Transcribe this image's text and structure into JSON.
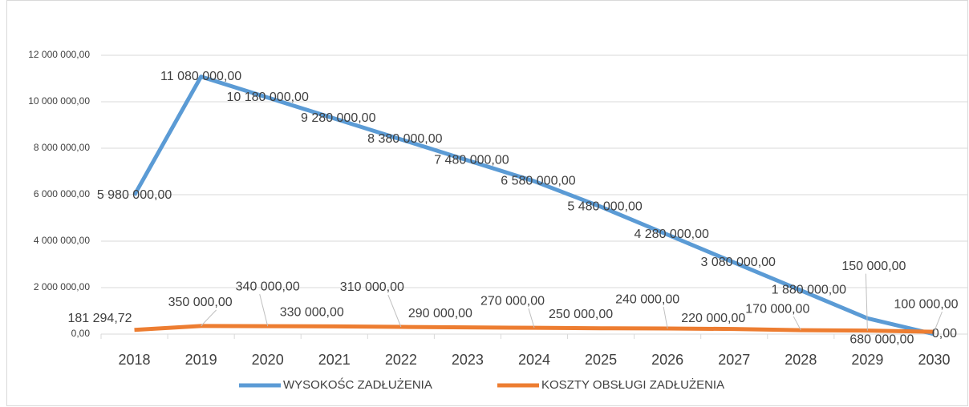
{
  "chart_data": {
    "type": "line",
    "categories": [
      "2018",
      "2019",
      "2020",
      "2021",
      "2022",
      "2023",
      "2024",
      "2025",
      "2026",
      "2027",
      "2028",
      "2029",
      "2030"
    ],
    "series": [
      {
        "name": "WYSOKOŚC ZADŁUŻENIA",
        "color": "#5b9bd5",
        "values": [
          5980000,
          11080000,
          10180000,
          9280000,
          8380000,
          7480000,
          6580000,
          5480000,
          4280000,
          3080000,
          1880000,
          680000,
          0
        ],
        "value_labels": [
          "5 980 000,00",
          "11 080 000,00",
          "10 180 000,00",
          "9 280 000,00",
          "8 380 000,00",
          "7 480 000,00",
          "6 580 000,00",
          "5 480 000,00",
          "4 280 000,00",
          "3 080 000,00",
          "1 880 000,00",
          "680 000,00",
          "0,00"
        ]
      },
      {
        "name": "KOSZTY OBSŁUGI ZADŁUŻENIA",
        "color": "#ed7d31",
        "values": [
          181294.72,
          350000,
          340000,
          330000,
          310000,
          290000,
          270000,
          250000,
          240000,
          220000,
          170000,
          150000,
          100000
        ],
        "value_labels": [
          "181 294,72",
          "350 000,00",
          "340 000,00",
          "330 000,00",
          "310 000,00",
          "290 000,00",
          "270 000,00",
          "250 000,00",
          "240 000,00",
          "220 000,00",
          "170 000,00",
          "150 000,00",
          "100 000,00"
        ]
      }
    ],
    "ylim": [
      0,
      12000000
    ],
    "yticks": [
      {
        "value": 0,
        "label": "0,00"
      },
      {
        "value": 2000000,
        "label": "2 000 000,00"
      },
      {
        "value": 4000000,
        "label": "4 000 000,00"
      },
      {
        "value": 6000000,
        "label": "6 000 000,00"
      },
      {
        "value": 8000000,
        "label": "8 000 000,00"
      },
      {
        "value": 10000000,
        "label": "10 000 000,00"
      },
      {
        "value": 12000000,
        "label": "12 000 000,00"
      }
    ],
    "grid": true,
    "legend": "bottom"
  }
}
